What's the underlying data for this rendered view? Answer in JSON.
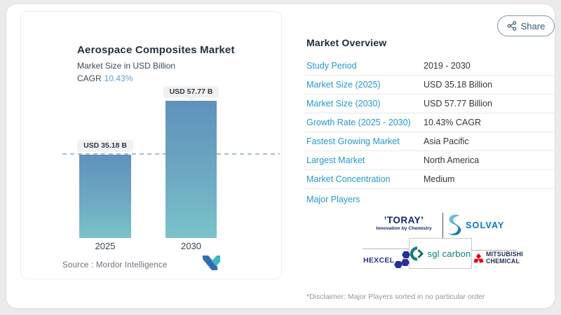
{
  "left_panel": {
    "title": "Aerospace Composites Market",
    "subtitle": "Market Size in USD Billion",
    "cagr_label": "CAGR",
    "cagr_value": "10.43%",
    "source_line": "Source :  Mordor Intelligence"
  },
  "chart_data": {
    "type": "bar",
    "title": "Aerospace Composites Market",
    "ylabel": "Market Size in USD Billion",
    "categories": [
      "2025",
      "2030"
    ],
    "values": [
      35.18,
      57.77
    ],
    "unit": "USD Billion",
    "bar_labels": [
      "USD 35.18 B",
      "USD 57.77 B"
    ],
    "reference_line": 35.18,
    "cagr_percent": 10.43,
    "bar_gradient_top": "#5e92bb",
    "bar_gradient_bottom": "#7ac3ca",
    "grid": false,
    "legend": false
  },
  "share": {
    "label": "Share"
  },
  "overview": {
    "title": "Market Overview",
    "rows": [
      {
        "label": "Study Period",
        "value": "2019 - 2030"
      },
      {
        "label": "Market Size (2025)",
        "value": "USD 35.18 Billion"
      },
      {
        "label": "Market Size (2030)",
        "value": "USD 57.77 Billion"
      },
      {
        "label": "Growth Rate (2025 - 2030)",
        "value": "10.43% CAGR"
      },
      {
        "label": "Fastest Growing Market",
        "value": "Asia Pacific"
      },
      {
        "label": "Largest Market",
        "value": "North America"
      },
      {
        "label": "Market Concentration",
        "value": "Medium"
      }
    ],
    "major_players_label": "Major Players",
    "players": {
      "toray": {
        "name": "’TORAY’",
        "tagline": "Innovation by Chemistry"
      },
      "solvay": {
        "name": "SOLVAY"
      },
      "hexcel": {
        "name": "HEXCEL"
      },
      "sgl": {
        "name": "sgl carbon"
      },
      "mitsubishi": {
        "name_line1": "MITSUBISHI",
        "name_line2": "CHEMICAL"
      }
    },
    "disclaimer": "*Disclaimer: Major Players sorted in no particular order"
  },
  "icons": {
    "share": "share-nodes-icon",
    "mordor": "mordor-intelligence-logo"
  },
  "colors": {
    "label_blue": "#2498cf",
    "cagr_blue": "#5b9fd1",
    "bar_top": "#5e92bb",
    "bar_bottom": "#7ac3ca",
    "toray_navy": "#15266b",
    "solvay_blue": "#0077c8",
    "hexcel_blue": "#282e93",
    "sgl_teal": "#0d817b",
    "mitsubishi_red": "#e60012"
  }
}
